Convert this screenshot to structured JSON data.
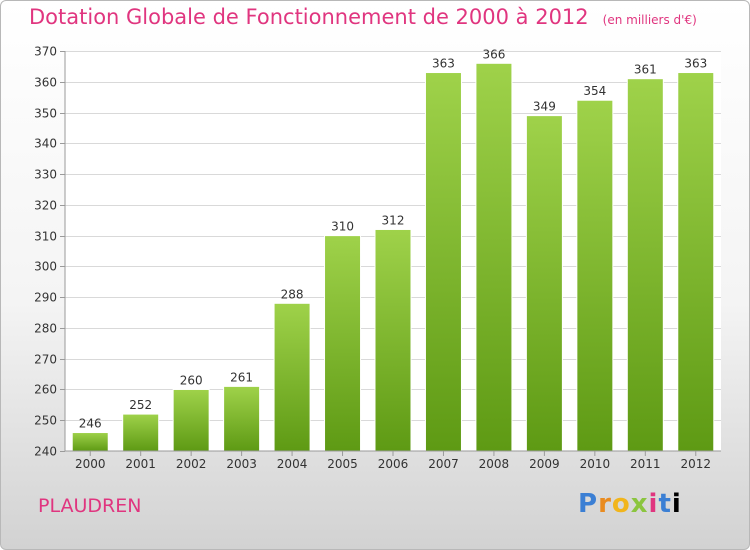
{
  "header": {
    "title": "Dotation Globale de Fonctionnement de 2000 à 2012",
    "subtitle": "(en milliers d'€)"
  },
  "footer": {
    "commune": "PLAUDREN",
    "brand": [
      "P",
      "r",
      "o",
      "x",
      "i",
      "t",
      "i"
    ]
  },
  "colors": {
    "bar_top": "#9fd24a",
    "bar_bottom": "#5e9a14",
    "title": "#e0357f"
  },
  "chart_data": {
    "type": "bar",
    "title": "Dotation Globale de Fonctionnement de 2000 à 2012",
    "subtitle": "(en milliers d'€)",
    "xlabel": "",
    "ylabel": "",
    "categories": [
      "2000",
      "2001",
      "2002",
      "2003",
      "2004",
      "2005",
      "2006",
      "2007",
      "2008",
      "2009",
      "2010",
      "2011",
      "2012"
    ],
    "values": [
      246,
      252,
      260,
      261,
      288,
      310,
      312,
      363,
      366,
      349,
      354,
      361,
      363
    ],
    "ylim": [
      240,
      370
    ],
    "yticks": [
      240,
      250,
      260,
      270,
      280,
      290,
      300,
      310,
      320,
      330,
      340,
      350,
      360,
      370
    ],
    "grid": true,
    "legend": "none"
  }
}
